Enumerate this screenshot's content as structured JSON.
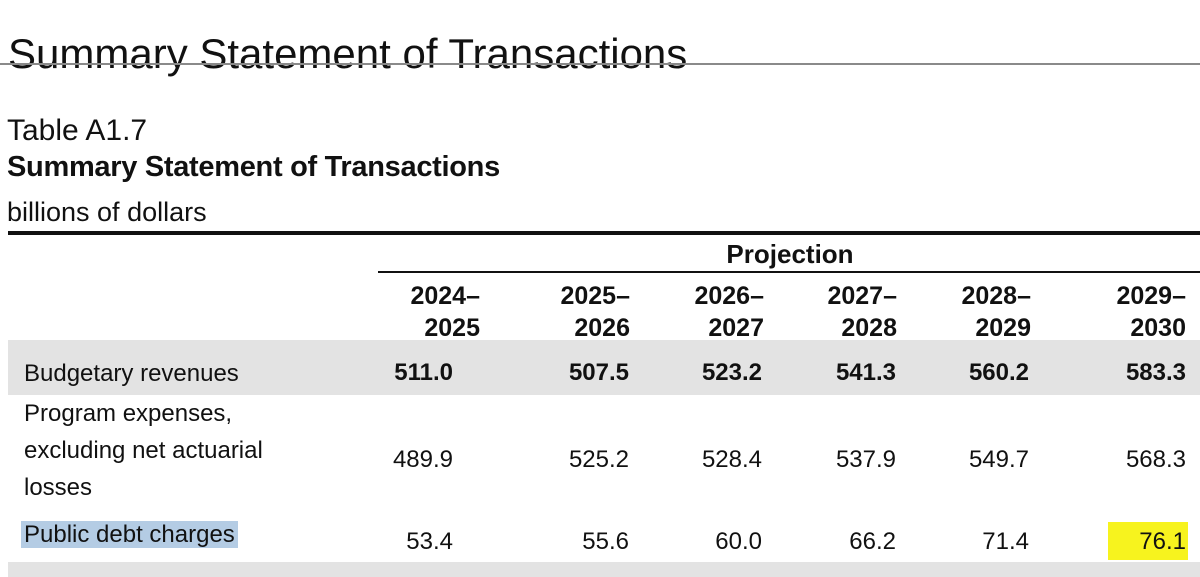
{
  "page": {
    "heading": "Summary Statement of Transactions"
  },
  "table": {
    "number": "Table A1.7",
    "title": "Summary Statement of Transactions",
    "unit": "billions of dollars",
    "group_header": "Projection",
    "columns": [
      {
        "line1": "2024–",
        "line2": "2025"
      },
      {
        "line1": "2025–",
        "line2": "2026"
      },
      {
        "line1": "2026–",
        "line2": "2027"
      },
      {
        "line1": "2027–",
        "line2": "2028"
      },
      {
        "line1": "2028–",
        "line2": "2029"
      },
      {
        "line1": "2029–",
        "line2": "2030"
      }
    ],
    "rows": [
      {
        "label": "Budgetary revenues",
        "values": [
          "511.0",
          "507.5",
          "523.2",
          "541.3",
          "560.2",
          "583.3"
        ],
        "bold_values": true
      },
      {
        "label_lines": [
          "Program expenses,",
          "excluding net actuarial",
          "losses"
        ],
        "values": [
          "489.9",
          "525.2",
          "528.4",
          "537.9",
          "549.7",
          "568.3"
        ],
        "bold_values": false
      },
      {
        "label": "Public debt charges",
        "values": [
          "53.4",
          "55.6",
          "60.0",
          "66.2",
          "71.4",
          "76.1"
        ],
        "bold_values": false,
        "label_highlight_color": "#b4cce4",
        "highlighted_value": "76.1",
        "value_highlight_color": "#f7f31e"
      }
    ]
  }
}
